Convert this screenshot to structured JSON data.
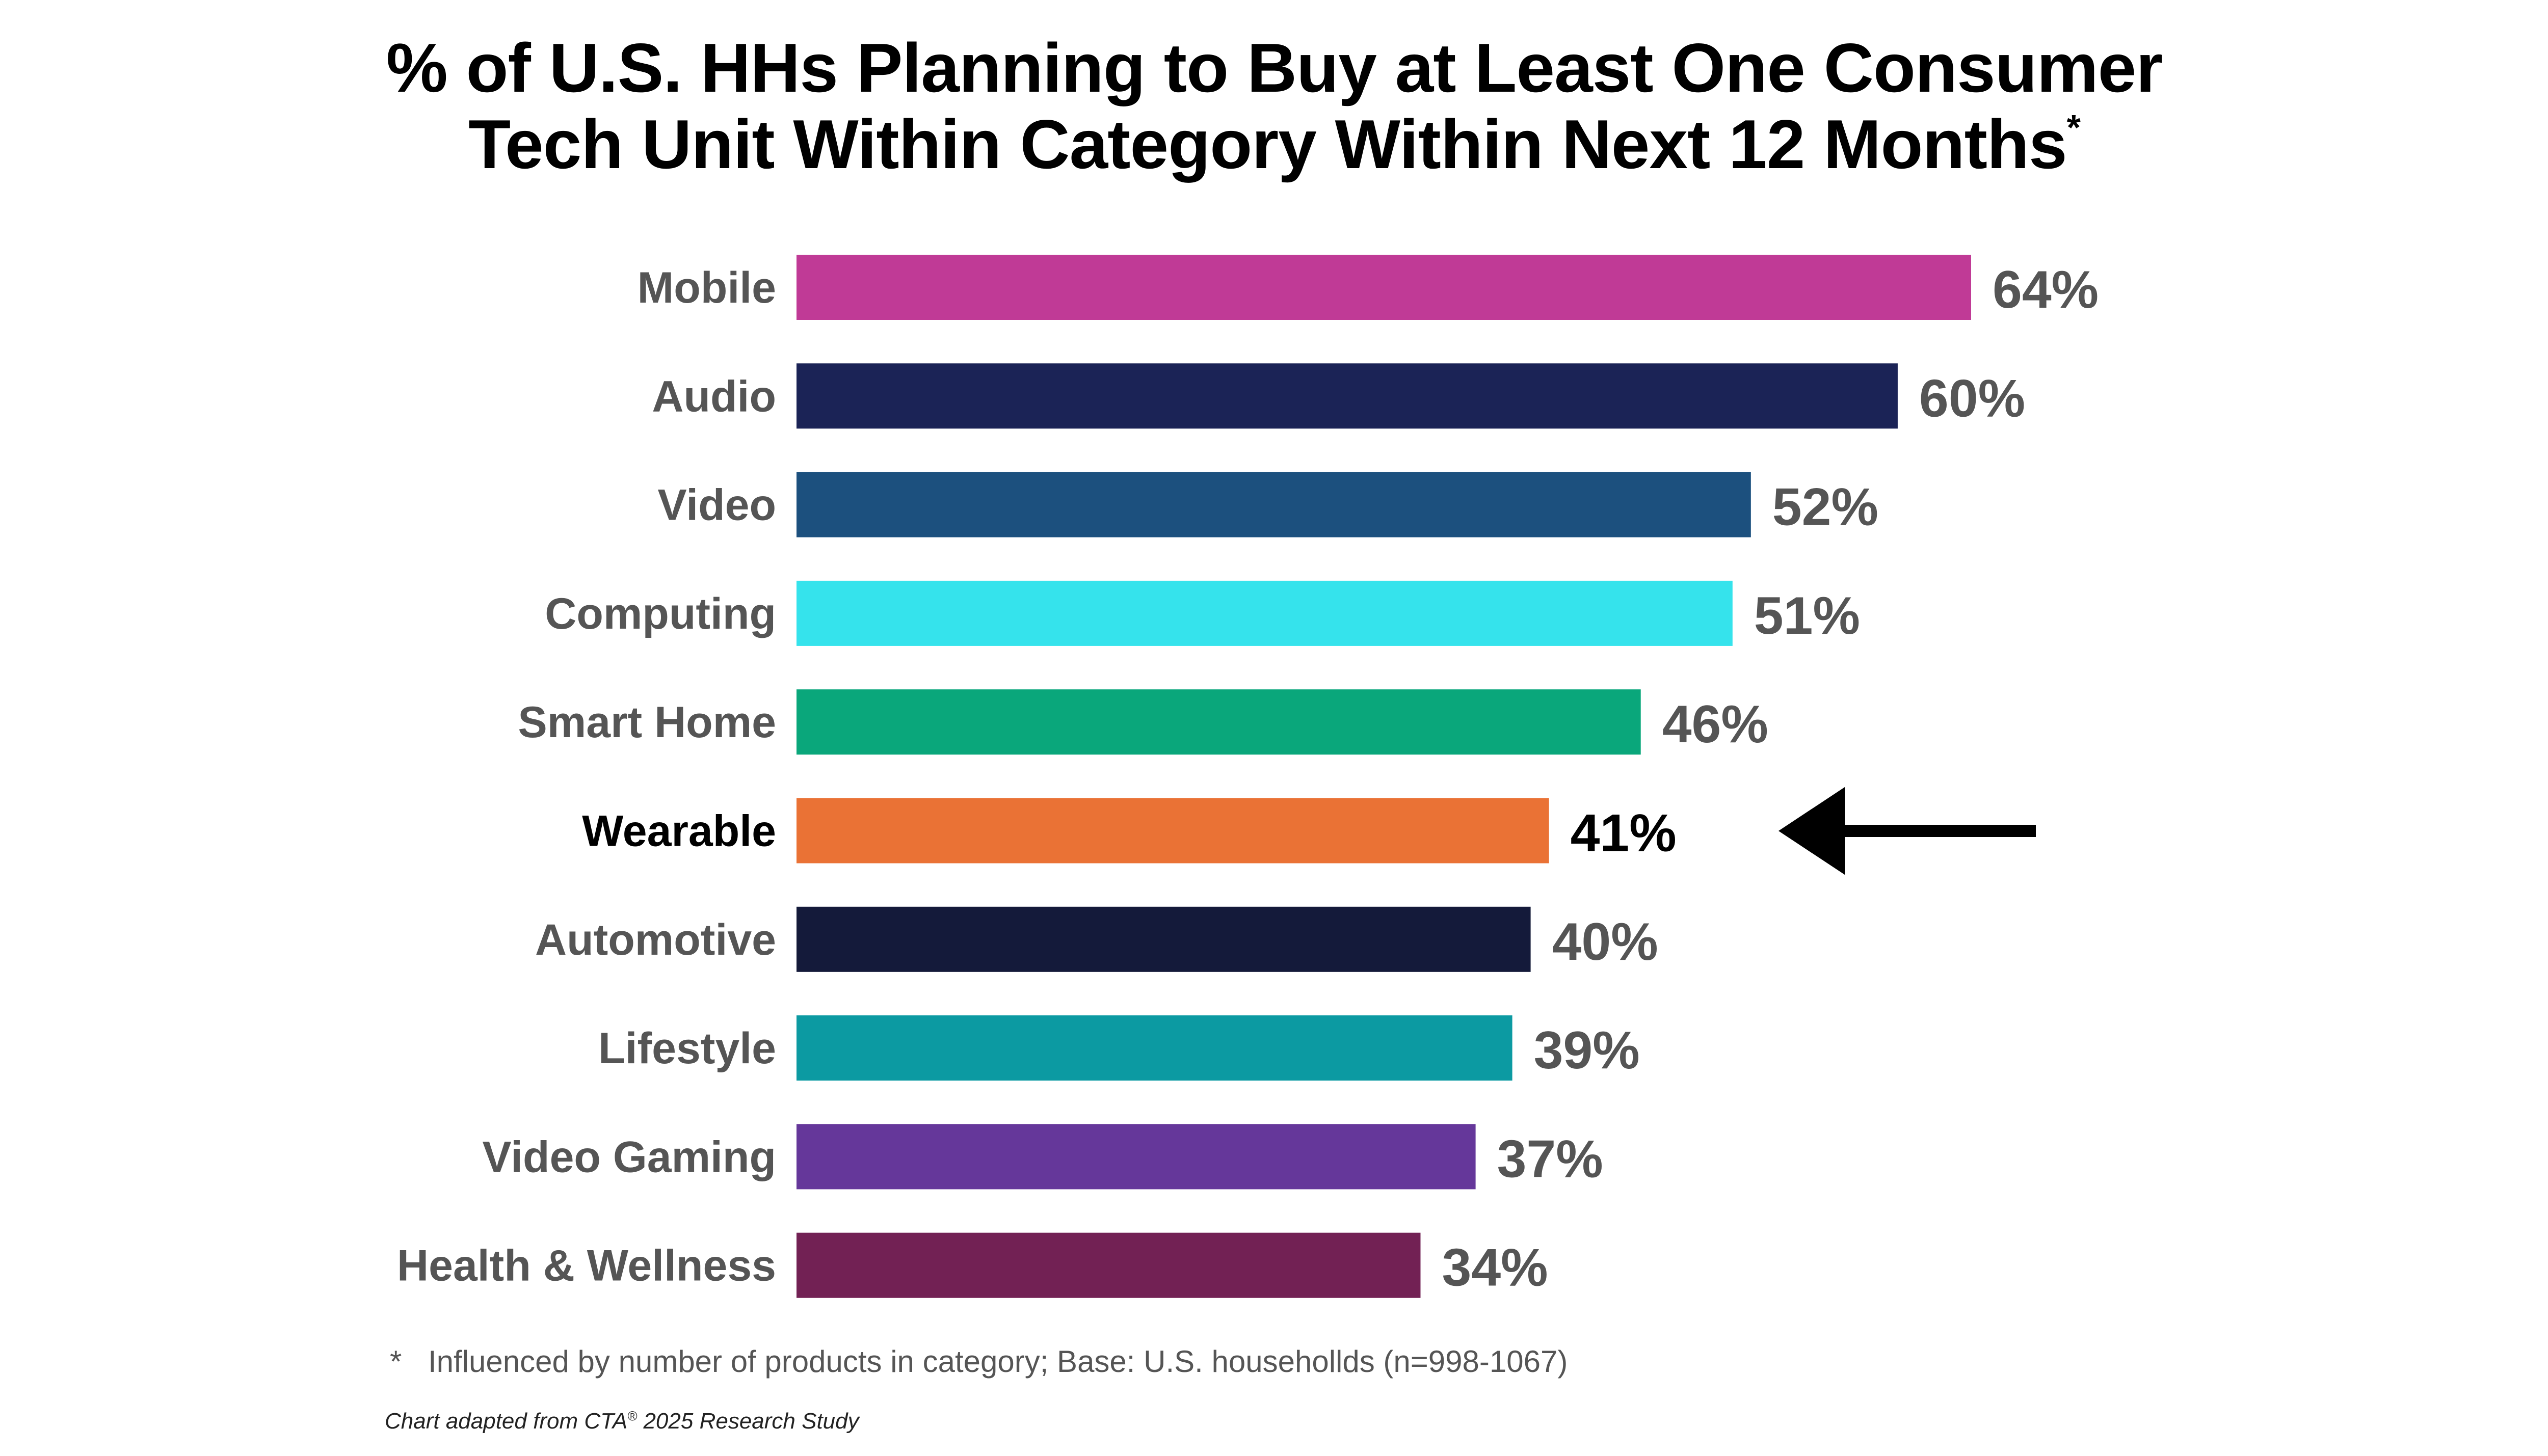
{
  "title": {
    "line1": "% of U.S. HHs Planning to Buy at Least One Consumer",
    "line2": "Tech Unit Within Category Within Next 12 Months",
    "footnote_marker": "*"
  },
  "footnote": {
    "marker": "*",
    "text": "Influenced by number of products in category; Base: U.S. househollds (n=998-1067)"
  },
  "source": {
    "text_before": "Chart adapted from CTA",
    "registered": "®",
    "text_after": " 2025 Research Study"
  },
  "chart_data": {
    "type": "bar",
    "orientation": "horizontal",
    "title": "% of U.S. HHs Planning to Buy at Least One Consumer Tech Unit Within Category Within Next 12 Months*",
    "xlabel": "",
    "ylabel": "",
    "xlim": [
      0,
      64
    ],
    "grid": false,
    "highlight": "Wearable",
    "annotation": "arrow pointing to Wearable",
    "categories": [
      "Mobile",
      "Audio",
      "Video",
      "Computing",
      "Smart Home",
      "Wearable",
      "Automotive",
      "Lifestyle",
      "Video Gaming",
      "Health & Wellness"
    ],
    "values": [
      64,
      60,
      52,
      51,
      46,
      41,
      40,
      39,
      37,
      34
    ],
    "labels": [
      "64%",
      "60%",
      "52%",
      "51%",
      "46%",
      "41%",
      "40%",
      "39%",
      "37%",
      "34%"
    ],
    "colors": [
      "#C03A96",
      "#1B2356",
      "#1C507E",
      "#35E3EC",
      "#0AA77B",
      "#EA7235",
      "#141A3A",
      "#0C9AA2",
      "#65379A",
      "#722154"
    ],
    "label_colors": [
      "#555555",
      "#555555",
      "#555555",
      "#555555",
      "#555555",
      "#000000",
      "#555555",
      "#555555",
      "#555555",
      "#555555"
    ]
  }
}
